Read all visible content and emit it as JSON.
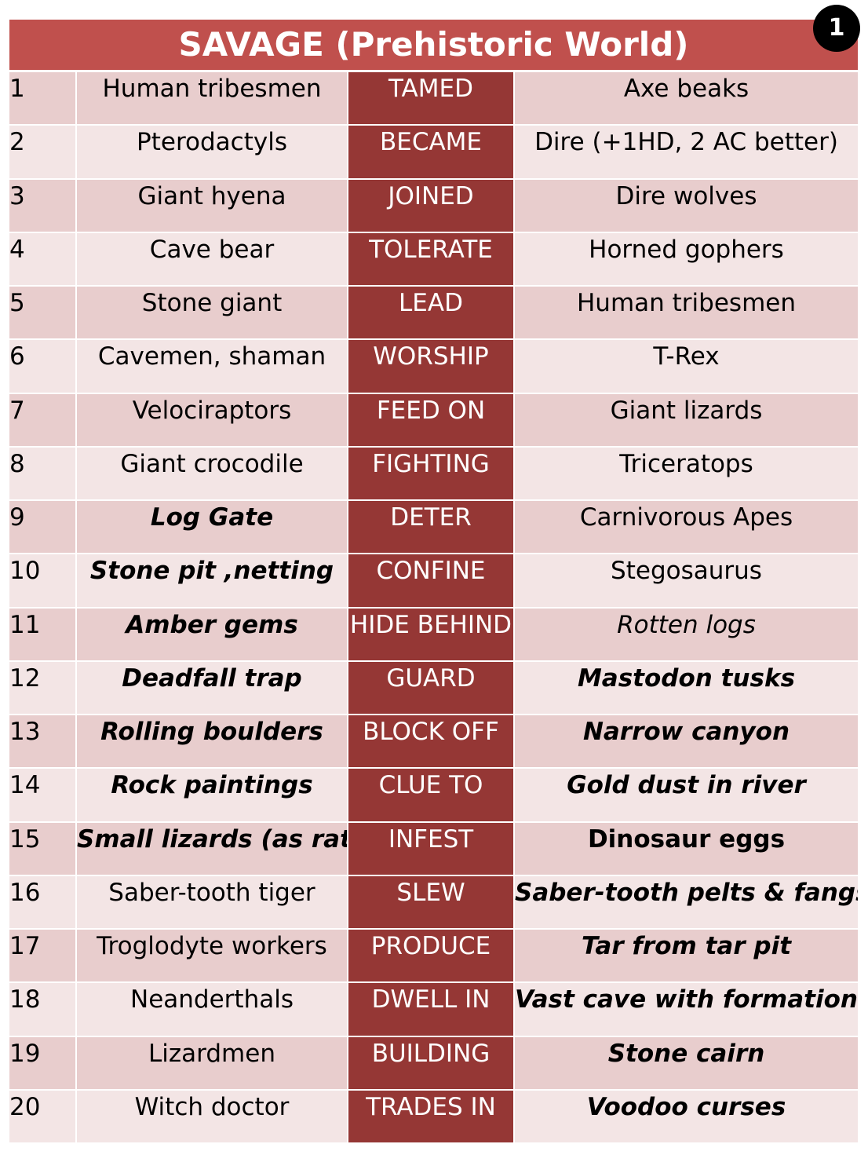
{
  "page_number": "1",
  "title": "SAVAGE (Prehistoric World)",
  "rows": [
    {
      "num": "1",
      "left": "Human tribesmen",
      "left_style": "normal",
      "verb": "TAMED",
      "right": "Axe beaks",
      "right_style": "normal"
    },
    {
      "num": "2",
      "left": "Pterodactyls",
      "left_style": "normal",
      "verb": "BECAME",
      "right": "Dire (+1HD, 2 AC better)",
      "right_style": "normal"
    },
    {
      "num": "3",
      "left": "Giant hyena",
      "left_style": "normal",
      "verb": "JOINED",
      "right": "Dire wolves",
      "right_style": "normal"
    },
    {
      "num": "4",
      "left": "Cave bear",
      "left_style": "normal",
      "verb": "TOLERATE",
      "right": "Horned gophers",
      "right_style": "normal"
    },
    {
      "num": "5",
      "left": "Stone giant",
      "left_style": "normal",
      "verb": "LEAD",
      "right": "Human tribesmen",
      "right_style": "normal"
    },
    {
      "num": "6",
      "left": "Cavemen, shaman",
      "left_style": "normal",
      "verb": "WORSHIP",
      "right": "T-Rex",
      "right_style": "normal"
    },
    {
      "num": "7",
      "left": "Velociraptors",
      "left_style": "normal",
      "verb": "FEED ON",
      "right": "Giant lizards",
      "right_style": "normal"
    },
    {
      "num": "8",
      "left": "Giant crocodile",
      "left_style": "normal",
      "verb": "FIGHTING",
      "right": "Triceratops",
      "right_style": "normal"
    },
    {
      "num": "9",
      "left": "Log Gate",
      "left_style": "bold-italic",
      "verb": "DETER",
      "right": "Carnivorous Apes",
      "right_style": "normal"
    },
    {
      "num": "10",
      "left": "Stone pit ,netting",
      "left_style": "bold-italic",
      "verb": "CONFINE",
      "right": "Stegosaurus",
      "right_style": "normal"
    },
    {
      "num": "11",
      "left": "Amber gems",
      "left_style": "bold-italic",
      "verb": "HIDE BEHIND",
      "right": "Rotten logs",
      "right_style": "italic"
    },
    {
      "num": "12",
      "left": "Deadfall trap",
      "left_style": "bold-italic",
      "verb": "GUARD",
      "right": "Mastodon tusks",
      "right_style": "bold-italic"
    },
    {
      "num": "13",
      "left": "Rolling boulders",
      "left_style": "bold-italic",
      "verb": "BLOCK OFF",
      "right": "Narrow canyon",
      "right_style": "bold-italic"
    },
    {
      "num": "14",
      "left": "Rock paintings",
      "left_style": "bold-italic",
      "verb": "CLUE TO",
      "right": "Gold dust in river",
      "right_style": "bold-italic"
    },
    {
      "num": "15",
      "left": "Small lizards (as rats)",
      "left_style": "bold-italic",
      "verb": "INFEST",
      "right": "Dinosaur eggs",
      "right_style": "bold"
    },
    {
      "num": "16",
      "left": "Saber-tooth tiger",
      "left_style": "normal",
      "verb": "SLEW",
      "right": "Saber-tooth pelts & fangs",
      "right_style": "bold-italic"
    },
    {
      "num": "17",
      "left": "Troglodyte workers",
      "left_style": "normal",
      "verb": "PRODUCE",
      "right": "Tar from tar pit",
      "right_style": "bold-italic"
    },
    {
      "num": "18",
      "left": "Neanderthals",
      "left_style": "normal",
      "verb": "DWELL IN",
      "right": "Vast cave with  formations",
      "right_style": "bold-italic"
    },
    {
      "num": "19",
      "left": "Lizardmen",
      "left_style": "normal",
      "verb": "BUILDING",
      "right": "Stone cairn",
      "right_style": "bold-italic"
    },
    {
      "num": "20",
      "left": "Witch doctor",
      "left_style": "normal",
      "verb": "TRADES IN",
      "right": "Voodoo curses",
      "right_style": "bold-italic"
    }
  ]
}
